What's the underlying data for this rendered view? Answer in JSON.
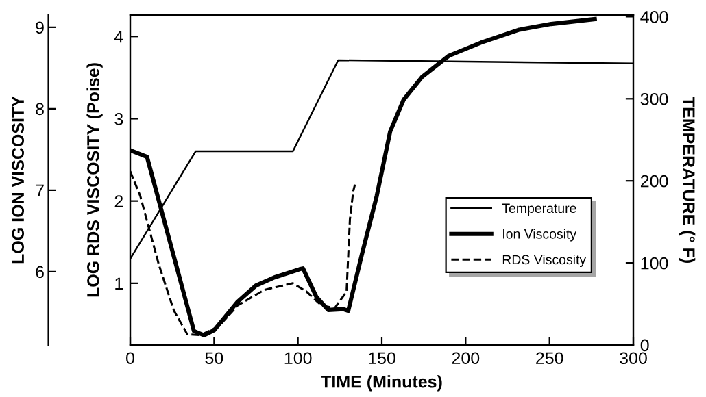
{
  "chart_data": {
    "type": "line",
    "xlabel": "TIME (Minutes)",
    "ylabel": "LOG RDS VISCOSITY (Poise)",
    "y2label": "TEMPERATURE (° F)",
    "y3label": "LOG ION VISCOSITY",
    "xlim": [
      0,
      300
    ],
    "xticks": [
      0,
      50,
      100,
      150,
      200,
      250,
      300
    ],
    "ylim": [
      0.25,
      4.26
    ],
    "yticks": [
      1,
      2,
      3,
      4
    ],
    "y2lim": [
      0,
      402
    ],
    "y2ticks": [
      0,
      100,
      200,
      300,
      400
    ],
    "y3lim": [
      5.1,
      9.15
    ],
    "y3ticks": [
      6,
      7,
      8,
      9
    ],
    "grid": false,
    "legend": "lower right",
    "marker": "none",
    "series": [
      {
        "name": "Temperature",
        "color": "#000000",
        "axis": "y2",
        "line_style": "solid",
        "x": [
          0,
          39,
          97,
          124,
          300
        ],
        "values": [
          105,
          236,
          236,
          347,
          343
        ]
      },
      {
        "name": "Ion Viscosity",
        "color": "#000000",
        "axis": "y3",
        "line_style": "solid",
        "x": [
          0,
          10,
          38,
          44,
          50,
          64,
          75,
          86,
          101,
          103,
          111,
          118,
          127,
          130,
          138,
          147,
          155,
          163,
          174,
          190,
          209,
          232,
          251,
          277
        ],
        "values": [
          7.49,
          7.41,
          5.27,
          5.22,
          5.28,
          5.63,
          5.83,
          5.93,
          6.03,
          6.04,
          5.69,
          5.53,
          5.54,
          5.52,
          6.2,
          6.93,
          7.72,
          8.11,
          8.39,
          8.65,
          8.81,
          8.97,
          9.04,
          9.1
        ]
      },
      {
        "name": "RDS Viscosity",
        "color": "#000000",
        "axis": "y",
        "line_style": "dashed",
        "x": [
          0,
          6,
          17,
          26,
          34,
          42,
          53,
          64,
          80,
          97,
          105,
          114,
          122,
          129,
          131,
          133,
          134
        ],
        "values": [
          2.36,
          2.06,
          1.23,
          0.67,
          0.38,
          0.37,
          0.48,
          0.73,
          0.92,
          1.0,
          0.9,
          0.73,
          0.7,
          0.9,
          1.78,
          2.12,
          2.2
        ]
      }
    ]
  }
}
